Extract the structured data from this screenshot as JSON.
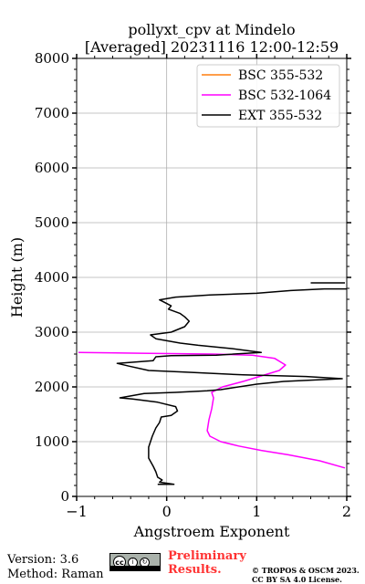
{
  "chart_data": {
    "type": "line",
    "title": "pollyxt_cpv at Mindelo",
    "subtitle": "[Averaged] 20231116 12:00-12:59",
    "xlabel": "Angstroem Exponent",
    "ylabel": "Height (m)",
    "xlim": [
      -1,
      2
    ],
    "ylim": [
      0,
      8000
    ],
    "xticks": [
      "−1",
      "0",
      "1",
      "2"
    ],
    "yticks": [
      "0",
      "1000",
      "2000",
      "3000",
      "4000",
      "5000",
      "6000",
      "7000",
      "8000"
    ],
    "grid": true,
    "legend_position": "top-right",
    "series": [
      {
        "name": "BSC 355-532",
        "color": "#ff7f0e",
        "points": []
      },
      {
        "name": "BSC 532-1064",
        "color": "#ff00ff",
        "points": [
          [
            1.98,
            520
          ],
          [
            1.7,
            650
          ],
          [
            1.35,
            760
          ],
          [
            1.05,
            840
          ],
          [
            0.8,
            920
          ],
          [
            0.6,
            1000
          ],
          [
            0.48,
            1100
          ],
          [
            0.45,
            1200
          ],
          [
            0.47,
            1400
          ],
          [
            0.5,
            1600
          ],
          [
            0.52,
            1800
          ],
          [
            0.5,
            1900
          ],
          [
            0.62,
            2000
          ],
          [
            0.85,
            2100
          ],
          [
            1.05,
            2200
          ],
          [
            1.25,
            2300
          ],
          [
            1.32,
            2400
          ],
          [
            1.2,
            2520
          ],
          [
            0.95,
            2580
          ],
          [
            0.5,
            2600
          ],
          [
            -0.3,
            2615
          ],
          [
            -0.98,
            2630
          ]
        ]
      },
      {
        "name": "EXT 355-532",
        "color": "#000000",
        "points": [
          [
            -0.1,
            220
          ],
          [
            0.08,
            220
          ],
          [
            -0.08,
            260
          ],
          [
            -0.05,
            300
          ],
          [
            -0.1,
            350
          ],
          [
            -0.12,
            450
          ],
          [
            -0.15,
            550
          ],
          [
            -0.2,
            700
          ],
          [
            -0.2,
            900
          ],
          [
            -0.16,
            1100
          ],
          [
            -0.12,
            1250
          ],
          [
            -0.08,
            1350
          ],
          [
            -0.06,
            1450
          ],
          [
            0.05,
            1480
          ],
          [
            0.12,
            1560
          ],
          [
            0.1,
            1640
          ],
          [
            -0.1,
            1720
          ],
          [
            -0.38,
            1780
          ],
          [
            -0.52,
            1800
          ],
          [
            -0.25,
            1880
          ],
          [
            0.1,
            1900
          ],
          [
            0.45,
            1930
          ],
          [
            0.6,
            1950
          ],
          [
            1.0,
            2050
          ],
          [
            1.3,
            2100
          ],
          [
            1.95,
            2150
          ],
          [
            1.55,
            2190
          ],
          [
            0.85,
            2220
          ],
          [
            0.2,
            2270
          ],
          [
            -0.2,
            2300
          ],
          [
            -0.42,
            2380
          ],
          [
            -0.55,
            2430
          ],
          [
            -0.15,
            2480
          ],
          [
            -0.12,
            2550
          ],
          [
            0.05,
            2570
          ],
          [
            0.55,
            2580
          ],
          [
            1.05,
            2630
          ],
          [
            0.72,
            2700
          ],
          [
            0.35,
            2760
          ],
          [
            0.15,
            2800
          ],
          [
            -0.12,
            2880
          ],
          [
            -0.18,
            2950
          ],
          [
            0.05,
            3000
          ],
          [
            0.2,
            3100
          ],
          [
            0.25,
            3200
          ],
          [
            0.2,
            3280
          ],
          [
            0.15,
            3340
          ],
          [
            0.02,
            3420
          ],
          [
            0.05,
            3480
          ],
          [
            -0.02,
            3540
          ],
          [
            -0.08,
            3590
          ],
          [
            0.1,
            3640
          ],
          [
            0.48,
            3680
          ],
          [
            1.0,
            3710
          ],
          [
            1.38,
            3760
          ],
          [
            1.75,
            3790
          ],
          [
            2.0,
            3790
          ]
        ]
      }
    ],
    "extra_segments": [
      {
        "color": "#000000",
        "points": [
          [
            1.6,
            3900
          ],
          [
            1.98,
            3900
          ]
        ]
      }
    ]
  },
  "footer": {
    "version": "Version: 3.6",
    "method": "Method: Raman",
    "prelim_line1": "Preliminary",
    "prelim_line2": "Results.",
    "credit_line1": "© TROPOS & OSCM 2023.",
    "credit_line2": "CC BY SA 4.0 License."
  }
}
